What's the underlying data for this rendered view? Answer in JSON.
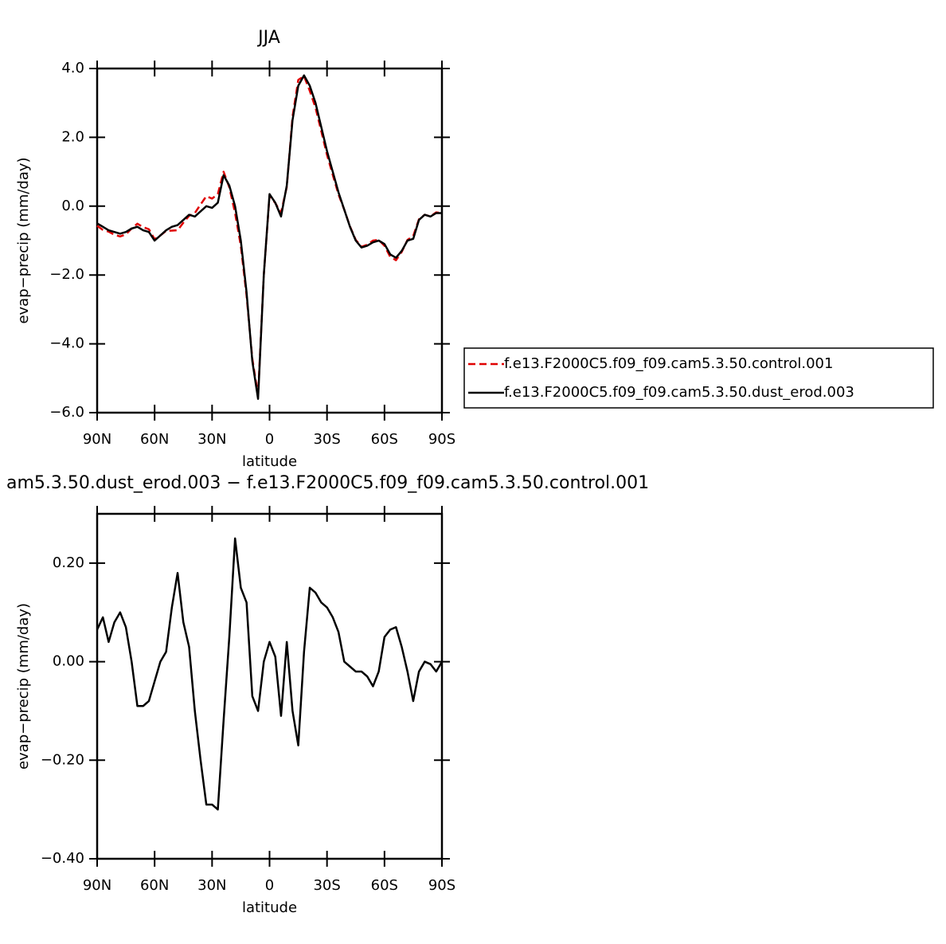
{
  "chart_data": [
    {
      "type": "line",
      "title": "JJA",
      "x_label": "latitude",
      "y_label": "evap−precip (mm/day)",
      "x": [
        90,
        87,
        84,
        81,
        78,
        75,
        72,
        69,
        66,
        63,
        60,
        57,
        54,
        51,
        48,
        45,
        42,
        39,
        36,
        33,
        30,
        27,
        24,
        21,
        18,
        15,
        12,
        9,
        6,
        3,
        0,
        -3,
        -6,
        -9,
        -12,
        -15,
        -18,
        -21,
        -24,
        -27,
        -30,
        -33,
        -36,
        -39,
        -42,
        -45,
        -48,
        -51,
        -54,
        -57,
        -60,
        -63,
        -66,
        -69,
        -72,
        -75,
        -78,
        -81,
        -84,
        -87,
        -90
      ],
      "xlim": [
        90,
        -90
      ],
      "xticks": [
        {
          "value": 90,
          "label": "90N"
        },
        {
          "value": 60,
          "label": "60N"
        },
        {
          "value": 30,
          "label": "30N"
        },
        0,
        {
          "value": -30,
          "label": "30S"
        },
        {
          "value": -60,
          "label": "60S"
        },
        {
          "value": -90,
          "label": "90S"
        }
      ],
      "ylim": [
        -6,
        4
      ],
      "yticks": [
        {
          "value": -6,
          "label": "−6.0"
        },
        {
          "value": -4,
          "label": "−4.0"
        },
        {
          "value": -2,
          "label": "−2.0"
        },
        {
          "value": 0,
          "label": "0.0"
        },
        {
          "value": 2,
          "label": "2.0"
        },
        {
          "value": 4,
          "label": "4.0"
        }
      ],
      "legend": "right",
      "series": [
        {
          "name": "f.e13.F2000C5.f09_f09.cam5.3.50.control.001",
          "color": "#e00000",
          "linestyle": "dashed",
          "values": [
            -0.57,
            -0.69,
            -0.74,
            -0.83,
            -0.88,
            -0.82,
            -0.65,
            -0.51,
            -0.61,
            -0.67,
            -0.96,
            -0.85,
            -0.72,
            -0.71,
            -0.7,
            -0.48,
            -0.28,
            -0.2,
            0.05,
            0.29,
            0.22,
            0.35,
            1.0,
            0.55,
            -0.2,
            -1.15,
            -2.6,
            -4.43,
            -5.5,
            -2.0,
            0.31,
            0.09,
            -0.19,
            0.56,
            2.6,
            3.67,
            3.78,
            3.35,
            2.86,
            2.18,
            1.49,
            0.91,
            0.34,
            -0.1,
            -0.59,
            -0.98,
            -1.18,
            -1.12,
            -1.0,
            -0.98,
            -1.15,
            -1.47,
            -1.57,
            -1.33,
            -0.98,
            -0.87,
            -0.38,
            -0.25,
            -0.3,
            -0.18,
            -0.2
          ]
        },
        {
          "name": "f.e13.F2000C5.f09_f09.cam5.3.50.dust_erod.003",
          "color": "#000000",
          "linestyle": "solid",
          "values": [
            -0.5,
            -0.6,
            -0.7,
            -0.75,
            -0.8,
            -0.75,
            -0.65,
            -0.6,
            -0.7,
            -0.75,
            -1.0,
            -0.85,
            -0.7,
            -0.6,
            -0.55,
            -0.4,
            -0.25,
            -0.3,
            -0.15,
            0.0,
            -0.05,
            0.1,
            0.9,
            0.6,
            0.0,
            -1.0,
            -2.5,
            -4.5,
            -5.6,
            -2.0,
            0.35,
            0.1,
            -0.3,
            0.6,
            2.5,
            3.5,
            3.8,
            3.5,
            3.0,
            2.3,
            1.6,
            1.0,
            0.4,
            -0.1,
            -0.6,
            -1.0,
            -1.2,
            -1.15,
            -1.05,
            -1.0,
            -1.1,
            -1.4,
            -1.5,
            -1.3,
            -1.0,
            -0.95,
            -0.4,
            -0.25,
            -0.3,
            -0.2,
            -0.2
          ]
        }
      ]
    },
    {
      "type": "line",
      "title": "am5.3.50.dust_erod.003 − f.e13.F2000C5.f09_f09.cam5.3.50.control.001",
      "x_label": "latitude",
      "y_label": "evap−precip (mm/day)",
      "x": [
        90,
        87,
        84,
        81,
        78,
        75,
        72,
        69,
        66,
        63,
        60,
        57,
        54,
        51,
        48,
        45,
        42,
        39,
        36,
        33,
        30,
        27,
        24,
        21,
        18,
        15,
        12,
        9,
        6,
        3,
        0,
        -3,
        -6,
        -9,
        -12,
        -15,
        -18,
        -21,
        -24,
        -27,
        -30,
        -33,
        -36,
        -39,
        -42,
        -45,
        -48,
        -51,
        -54,
        -57,
        -60,
        -63,
        -66,
        -69,
        -72,
        -75,
        -78,
        -81,
        -84,
        -87,
        -90
      ],
      "xlim": [
        90,
        -90
      ],
      "xticks": [
        {
          "value": 90,
          "label": "90N"
        },
        {
          "value": 60,
          "label": "60N"
        },
        {
          "value": 30,
          "label": "30N"
        },
        0,
        {
          "value": -30,
          "label": "30S"
        },
        {
          "value": -60,
          "label": "60S"
        },
        {
          "value": -90,
          "label": "90S"
        }
      ],
      "ylim": [
        -0.4,
        0.3
      ],
      "yticks": [
        {
          "value": -0.4,
          "label": "−0.40"
        },
        {
          "value": -0.2,
          "label": "−0.20"
        },
        {
          "value": 0,
          "label": "0.00"
        },
        {
          "value": 0.2,
          "label": "0.20"
        }
      ],
      "series": [
        {
          "color": "#000000",
          "linestyle": "solid",
          "values": [
            0.065,
            0.09,
            0.04,
            0.08,
            0.1,
            0.07,
            0.0,
            -0.09,
            -0.09,
            -0.08,
            -0.04,
            0.0,
            0.02,
            0.11,
            0.18,
            0.08,
            0.03,
            -0.1,
            -0.2,
            -0.29,
            -0.29,
            -0.3,
            -0.12,
            0.05,
            0.25,
            0.15,
            0.12,
            -0.07,
            -0.1,
            0.0,
            0.04,
            0.01,
            -0.11,
            0.04,
            -0.1,
            -0.17,
            0.02,
            0.15,
            0.14,
            0.12,
            0.11,
            0.09,
            0.06,
            0.0,
            -0.01,
            -0.02,
            -0.02,
            -0.03,
            -0.05,
            -0.02,
            0.05,
            0.065,
            0.07,
            0.03,
            -0.02,
            -0.08,
            -0.02,
            0.0,
            -0.005,
            -0.02,
            0.0
          ]
        }
      ]
    }
  ]
}
